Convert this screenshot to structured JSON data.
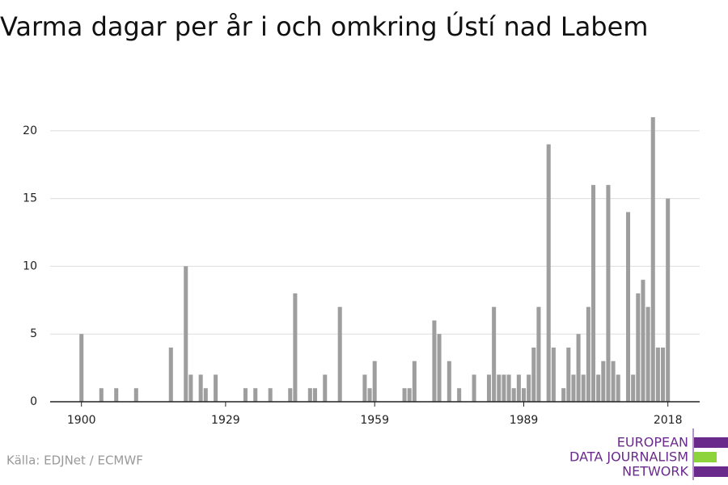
{
  "chart_data": {
    "type": "bar",
    "title": "Varma dagar per år i och omkring Ústí nad Labem",
    "source": "Källa: EDJNet / ECMWF",
    "logo": [
      "EUROPEAN",
      "DATA JOURNALISM",
      "NETWORK"
    ],
    "color": "#9e9e9e",
    "x": [
      1900,
      1904,
      1907,
      1911,
      1918,
      1921,
      1922,
      1924,
      1925,
      1927,
      1933,
      1935,
      1938,
      1942,
      1943,
      1946,
      1947,
      1949,
      1952,
      1957,
      1958,
      1959,
      1965,
      1966,
      1967,
      1971,
      1972,
      1974,
      1976,
      1979,
      1982,
      1983,
      1984,
      1985,
      1986,
      1987,
      1988,
      1989,
      1990,
      1991,
      1992,
      1994,
      1995,
      1997,
      1998,
      1999,
      2000,
      2001,
      2002,
      2003,
      2004,
      2005,
      2006,
      2007,
      2008,
      2010,
      2011,
      2012,
      2013,
      2014,
      2015,
      2016,
      2017,
      2018
    ],
    "values": [
      5,
      1,
      1,
      1,
      4,
      10,
      2,
      2,
      1,
      2,
      1,
      1,
      1,
      1,
      8,
      1,
      1,
      2,
      7,
      2,
      1,
      3,
      1,
      1,
      3,
      6,
      5,
      3,
      1,
      2,
      2,
      7,
      2,
      2,
      2,
      1,
      2,
      1,
      2,
      4,
      7,
      19,
      4,
      1,
      4,
      2,
      5,
      2,
      7,
      16,
      2,
      3,
      16,
      3,
      2,
      14,
      2,
      8,
      9,
      7,
      21,
      4,
      4,
      15
    ],
    "xlim": [
      1893.7,
      2024.4
    ],
    "xticks": [
      1900,
      1929,
      1959,
      1989,
      2018
    ],
    "ylim": [
      0,
      21.3
    ],
    "yticks": [
      0,
      5,
      10,
      15,
      20
    ],
    "grid": true
  }
}
